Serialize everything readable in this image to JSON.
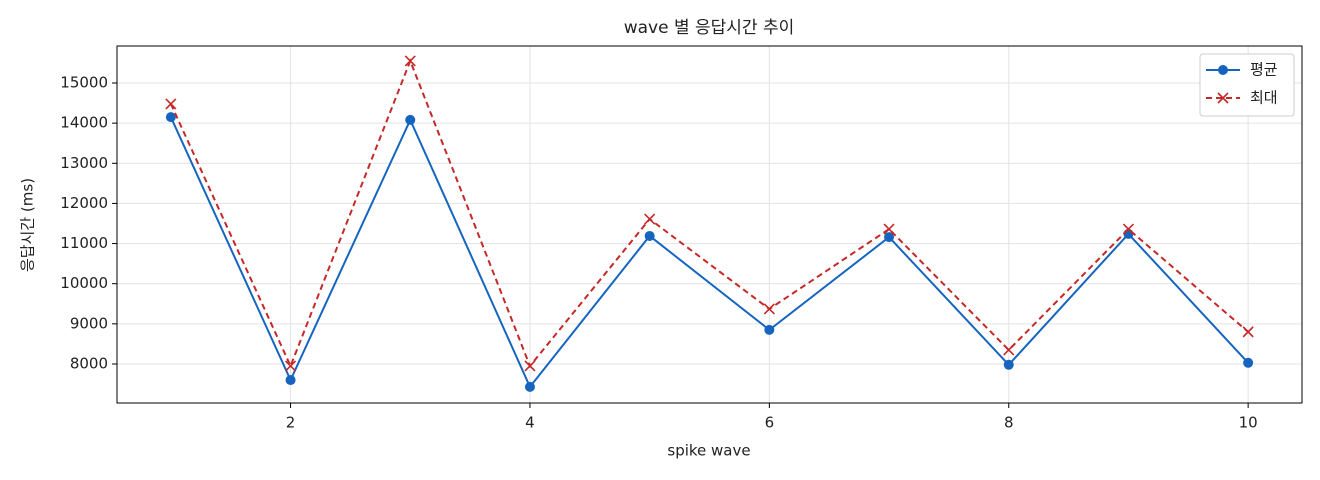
{
  "chart_data": {
    "type": "line",
    "title": "wave 별 응답시간 추이",
    "x_label": "spike wave",
    "y_label": "응답시간 (ms)",
    "x": [
      1,
      2,
      3,
      4,
      5,
      6,
      7,
      8,
      9,
      10
    ],
    "series": [
      {
        "name": "평균",
        "color": "#1565c0",
        "linestyle": "solid",
        "marker": "circle",
        "values": [
          14150,
          7600,
          14080,
          7430,
          11190,
          8850,
          11160,
          7980,
          11240,
          8030
        ]
      },
      {
        "name": "최대",
        "color": "#c62828",
        "linestyle": "dashed",
        "marker": "x",
        "values": [
          14480,
          7950,
          15550,
          7950,
          11610,
          9370,
          11360,
          8350,
          11360,
          8800
        ]
      }
    ],
    "xlim": [
      0.55,
      10.45
    ],
    "ylim": [
      7028,
      15922
    ],
    "xticks": [
      2,
      4,
      6,
      8,
      10
    ],
    "yticks": [
      8000,
      9000,
      10000,
      11000,
      12000,
      13000,
      14000,
      15000
    ],
    "grid": true,
    "legend": "upper right"
  }
}
